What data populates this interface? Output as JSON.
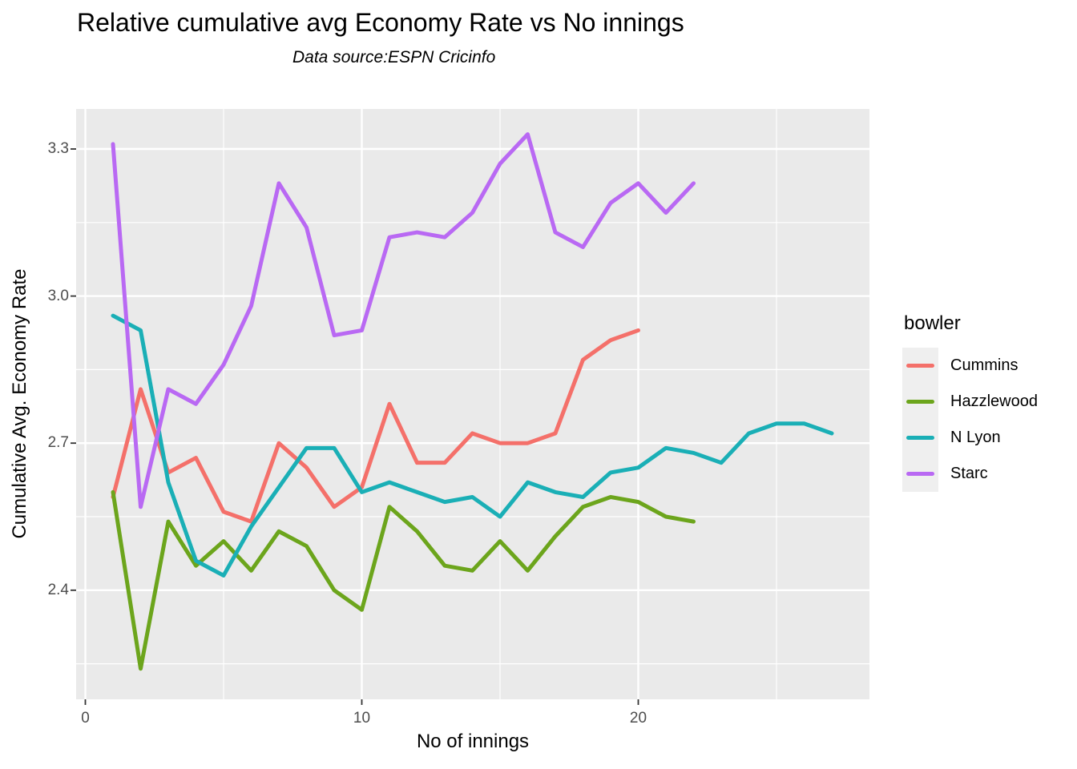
{
  "title": "Relative cumulative avg Economy Rate vs No innings",
  "subtitle": "Data source:ESPN Cricinfo",
  "panel": {
    "background": "#eaeaea",
    "grid_color": "#ffffff",
    "tick_color": "#333333"
  },
  "chart_data": {
    "type": "line",
    "title": "Relative cumulative avg Economy Rate vs No innings",
    "subtitle": "Data source:ESPN Cricinfo",
    "xlabel": "No of innings",
    "ylabel": "Cumulative Avg. Economy Rate",
    "legend_title": "bowler",
    "legend_position": "right",
    "grid": true,
    "xlim": [
      -0.35,
      28.4
    ],
    "ylim": [
      2.18,
      3.38
    ],
    "x_major_ticks": [
      {
        "value": 0,
        "label": "0"
      },
      {
        "value": 10,
        "label": "10"
      },
      {
        "value": 20,
        "label": "20"
      }
    ],
    "x_minor_ticks": [
      5,
      15,
      25
    ],
    "y_major_ticks": [
      {
        "value": 2.4,
        "label": "2.4"
      },
      {
        "value": 2.7,
        "label": "2.7"
      },
      {
        "value": 3.0,
        "label": "3.0"
      },
      {
        "value": 3.3,
        "label": "3.3"
      }
    ],
    "y_minor_ticks": [
      2.25,
      2.55,
      2.85,
      3.15
    ],
    "x_start": 1,
    "series": [
      {
        "name": "Cummins",
        "color": "#f4706a",
        "values": [
          2.59,
          2.81,
          2.64,
          2.67,
          2.56,
          2.54,
          2.7,
          2.65,
          2.57,
          2.61,
          2.78,
          2.66,
          2.66,
          2.72,
          2.7,
          2.7,
          2.72,
          2.87,
          2.91,
          2.93
        ]
      },
      {
        "name": "Hazzlewood",
        "color": "#6ca51c",
        "values": [
          2.6,
          2.24,
          2.54,
          2.45,
          2.5,
          2.44,
          2.52,
          2.49,
          2.4,
          2.36,
          2.57,
          2.52,
          2.45,
          2.44,
          2.5,
          2.44,
          2.51,
          2.57,
          2.59,
          2.58,
          2.55,
          2.54
        ]
      },
      {
        "name": "N Lyon",
        "color": "#1aafb6",
        "values": [
          2.96,
          2.93,
          2.62,
          2.46,
          2.43,
          2.53,
          2.61,
          2.69,
          2.69,
          2.6,
          2.62,
          2.6,
          2.58,
          2.59,
          2.55,
          2.62,
          2.6,
          2.59,
          2.64,
          2.65,
          2.69,
          2.68,
          2.66,
          2.72,
          2.74,
          2.74,
          2.72
        ]
      },
      {
        "name": "Starc",
        "color": "#b969f3",
        "values": [
          3.31,
          2.57,
          2.81,
          2.78,
          2.86,
          2.98,
          3.23,
          3.14,
          2.92,
          2.93,
          3.12,
          3.13,
          3.12,
          3.17,
          3.27,
          3.33,
          3.13,
          3.1,
          3.19,
          3.23,
          3.17,
          3.23
        ]
      }
    ]
  }
}
